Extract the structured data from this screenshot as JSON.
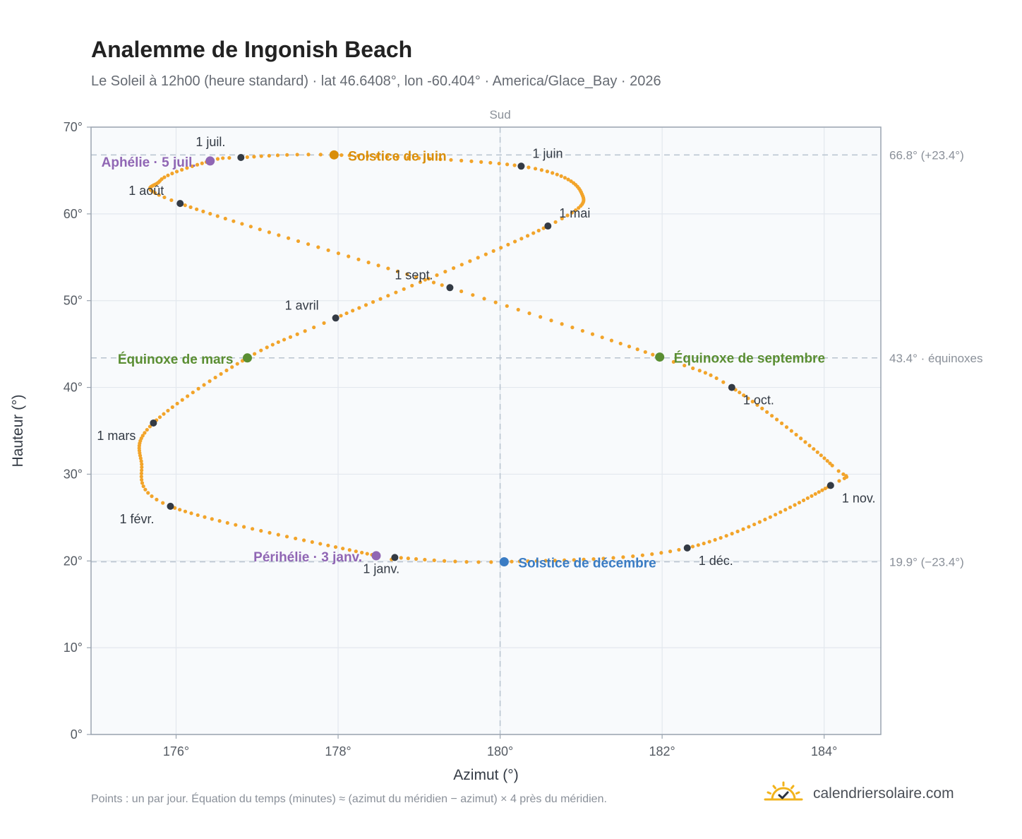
{
  "header": {
    "title": "Analemme de Ingonish Beach",
    "subtitle": "Le Soleil à 12h00 (heure standard) · lat 46.6408°, lon -60.404° · America/Glace_Bay · 2026"
  },
  "footer": {
    "note": "Points : un par jour. Équation du temps (minutes) ≈ (azimut du méridien − azimut) × 4 près du méridien.",
    "brand": "calendriersolaire.com",
    "brand_icon": "sun-check-icon"
  },
  "colors": {
    "curve": "#f2a42a",
    "month_marker": "#333a44",
    "solstice_june": "#d98e0a",
    "solstice_december": "#3a7cc4",
    "equinox": "#5a8e32",
    "apsis": "#9066b4",
    "plot_bg": "#f8fafc",
    "grid": "#e3e8ee",
    "reference_line": "#b8c3cf"
  },
  "chart_data": {
    "type": "scatter",
    "xlabel": "Azimut (°)",
    "ylabel": "Hauteur (°)",
    "xlim": [
      174.95,
      184.7
    ],
    "ylim": [
      0,
      70
    ],
    "x_ticks": [
      {
        "value": 176,
        "label": "176°"
      },
      {
        "value": 178,
        "label": "178°"
      },
      {
        "value": 180,
        "label": "180°"
      },
      {
        "value": 182,
        "label": "182°"
      },
      {
        "value": 184,
        "label": "184°"
      }
    ],
    "y_ticks": [
      {
        "value": 0,
        "label": "0°"
      },
      {
        "value": 10,
        "label": "10°"
      },
      {
        "value": 20,
        "label": "20°"
      },
      {
        "value": 30,
        "label": "30°"
      },
      {
        "value": 40,
        "label": "40°"
      },
      {
        "value": 50,
        "label": "50°"
      },
      {
        "value": 60,
        "label": "60°"
      },
      {
        "value": 70,
        "label": "70°"
      }
    ],
    "grid": true,
    "meridian": {
      "x": 180,
      "label": "Sud"
    },
    "reference_lines": [
      {
        "y": 66.8,
        "label": "66.8° (+23.4°)"
      },
      {
        "y": 43.4,
        "label": "43.4° · équinoxes"
      },
      {
        "y": 19.9,
        "label": "19.9° (−23.4°)"
      }
    ],
    "month_markers": [
      {
        "label": "1 janv.",
        "x": 178.7,
        "y": 20.4
      },
      {
        "label": "1 févr.",
        "x": 175.93,
        "y": 26.3
      },
      {
        "label": "1 mars",
        "x": 175.72,
        "y": 35.9
      },
      {
        "label": "1 avril",
        "x": 177.97,
        "y": 48.0
      },
      {
        "label": "1 mai",
        "x": 180.59,
        "y": 58.6
      },
      {
        "label": "1 juin",
        "x": 180.26,
        "y": 65.5
      },
      {
        "label": "1 juil.",
        "x": 176.8,
        "y": 66.5
      },
      {
        "label": "1 août",
        "x": 176.05,
        "y": 61.2
      },
      {
        "label": "1 sept.",
        "x": 179.38,
        "y": 51.5
      },
      {
        "label": "1 oct.",
        "x": 182.86,
        "y": 40.0
      },
      {
        "label": "1 nov.",
        "x": 184.08,
        "y": 28.7
      },
      {
        "label": "1 déc.",
        "x": 182.31,
        "y": 21.5
      }
    ],
    "events": [
      {
        "label": "Solstice de juin",
        "x": 177.95,
        "y": 66.8,
        "kind": "solstice_june"
      },
      {
        "label": "Solstice de décembre",
        "x": 180.05,
        "y": 19.9,
        "kind": "solstice_december"
      },
      {
        "label": "Équinoxe de mars",
        "x": 176.88,
        "y": 43.4,
        "kind": "equinox"
      },
      {
        "label": "Équinoxe de septembre",
        "x": 181.97,
        "y": 43.5,
        "kind": "equinox"
      },
      {
        "label": "Aphélie · 5 juil.",
        "x": 176.42,
        "y": 66.1,
        "kind": "apsis"
      },
      {
        "label": "Périhélie · 3 janv.",
        "x": 178.47,
        "y": 20.6,
        "kind": "apsis"
      }
    ]
  }
}
